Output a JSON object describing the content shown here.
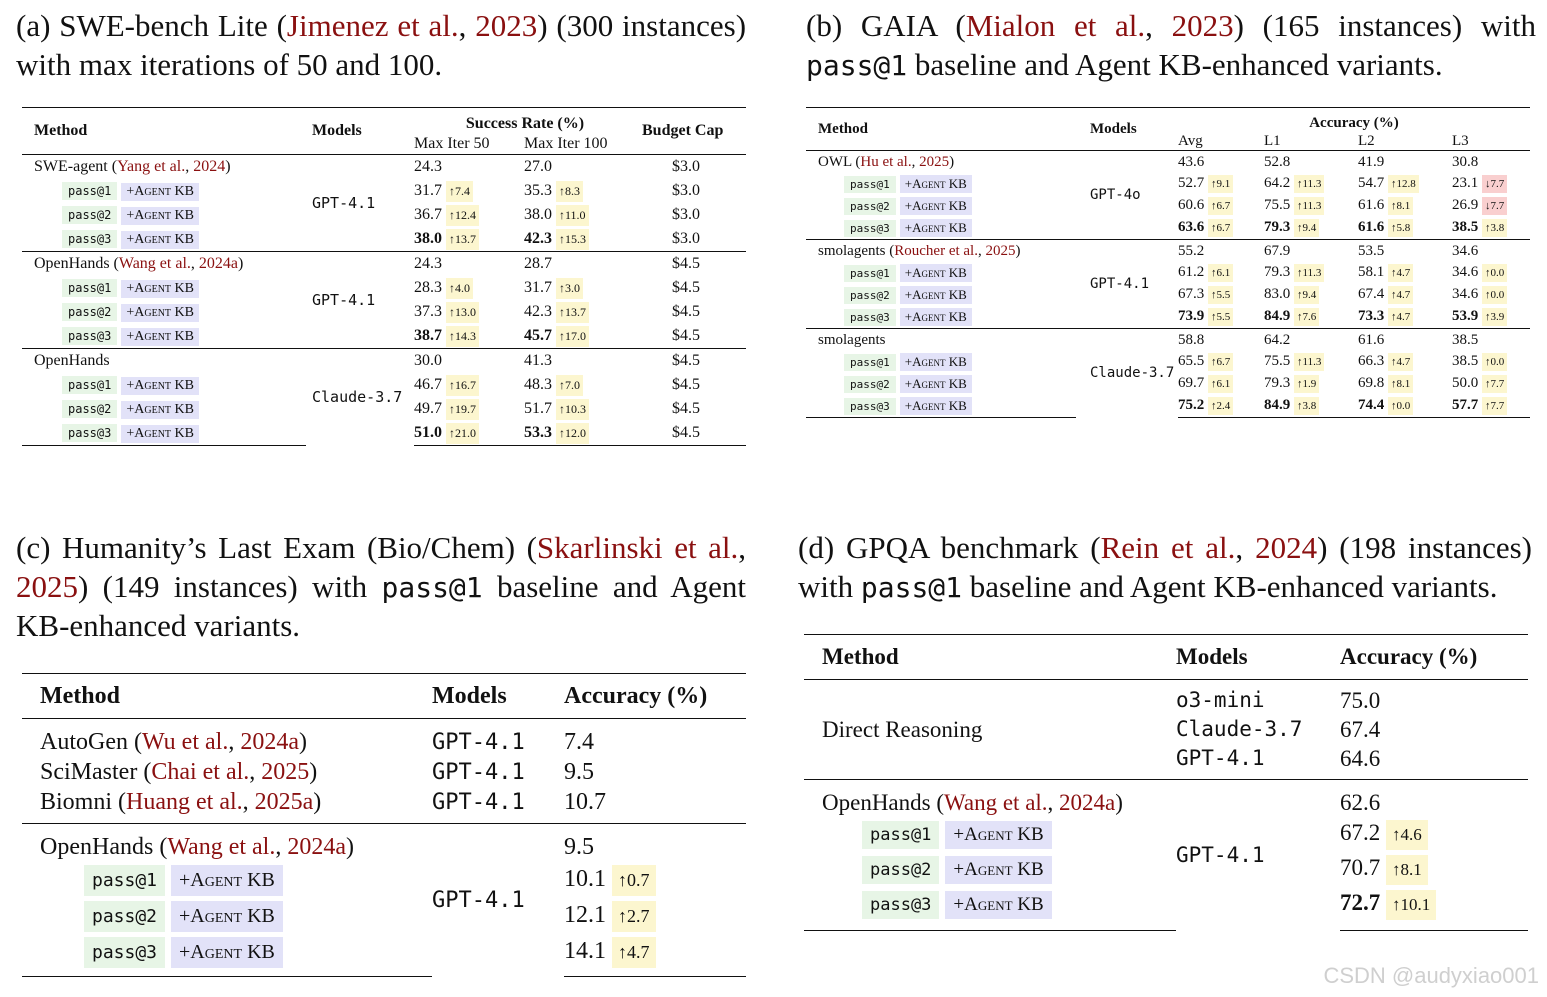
{
  "panel_a": {
    "caption": {
      "label": "(a) SWE-bench Lite (",
      "cite_author": "Jimenez et al.",
      "cite_sep": ", ",
      "cite_year": "2023",
      "rest": ") (300 instances) with max iterations of 50 and 100."
    },
    "header": {
      "method": "Method",
      "models": "Models",
      "group": "Success Rate (%)",
      "col1": "Max Iter 50",
      "col2": "Max Iter 100",
      "budget": "Budget Cap"
    },
    "groups": [
      {
        "method": "SWE-agent",
        "cite_author": "Yang et al.",
        "cite_year": "2024",
        "model": "GPT-4.1",
        "base": {
          "v1": "24.3",
          "v2": "27.0",
          "cap": "$3.0"
        },
        "rows": [
          {
            "pass": "pass@1",
            "kb": "+Agent KB",
            "v1": "31.7",
            "d1": "↑7.4",
            "v2": "35.3",
            "d2": "↑8.3",
            "cap": "$3.0"
          },
          {
            "pass": "pass@2",
            "kb": "+Agent KB",
            "v1": "36.7",
            "d1": "↑12.4",
            "v2": "38.0",
            "d2": "↑11.0",
            "cap": "$3.0"
          },
          {
            "pass": "pass@3",
            "kb": "+Agent KB",
            "v1": "38.0",
            "d1": "↑13.7",
            "v2": "42.3",
            "d2": "↑15.3",
            "cap": "$3.0"
          }
        ]
      },
      {
        "method": "OpenHands",
        "cite_author": "Wang et al.",
        "cite_year": "2024a",
        "model": "GPT-4.1",
        "base": {
          "v1": "24.3",
          "v2": "28.7",
          "cap": "$4.5"
        },
        "rows": [
          {
            "pass": "pass@1",
            "kb": "+Agent KB",
            "v1": "28.3",
            "d1": "↑4.0",
            "v2": "31.7",
            "d2": "↑3.0",
            "cap": "$4.5"
          },
          {
            "pass": "pass@2",
            "kb": "+Agent KB",
            "v1": "37.3",
            "d1": "↑13.0",
            "v2": "42.3",
            "d2": "↑13.7",
            "cap": "$4.5"
          },
          {
            "pass": "pass@3",
            "kb": "+Agent KB",
            "v1": "38.7",
            "d1": "↑14.3",
            "v2": "45.7",
            "d2": "↑17.0",
            "cap": "$4.5"
          }
        ]
      },
      {
        "method": "OpenHands",
        "cite_author": "",
        "cite_year": "",
        "model": "Claude-3.7",
        "base": {
          "v1": "30.0",
          "v2": "41.3",
          "cap": "$4.5"
        },
        "rows": [
          {
            "pass": "pass@1",
            "kb": "+Agent KB",
            "v1": "46.7",
            "d1": "↑16.7",
            "v2": "48.3",
            "d2": "↑7.0",
            "cap": "$4.5"
          },
          {
            "pass": "pass@2",
            "kb": "+Agent KB",
            "v1": "49.7",
            "d1": "↑19.7",
            "v2": "51.7",
            "d2": "↑10.3",
            "cap": "$4.5"
          },
          {
            "pass": "pass@3",
            "kb": "+Agent KB",
            "v1": "51.0",
            "d1": "↑21.0",
            "v2": "53.3",
            "d2": "↑12.0",
            "cap": "$4.5"
          }
        ]
      }
    ]
  },
  "panel_b": {
    "caption": {
      "label": "(b) GAIA (",
      "cite_author": "Mialon et al.",
      "cite_sep": ", ",
      "cite_year": "2023",
      "rest1": ") (165 instances) with ",
      "code": "pass@1",
      "rest2": " baseline and Agent KB-enhanced variants."
    },
    "header": {
      "method": "Method",
      "models": "Models",
      "group": "Accuracy (%)",
      "avg": "Avg",
      "l1": "L1",
      "l2": "L2",
      "l3": "L3"
    },
    "groups": [
      {
        "method": "OWL",
        "cite_author": "Hu et al.",
        "cite_year": "2025",
        "model": "GPT-4o",
        "base": [
          "43.6",
          "52.8",
          "41.9",
          "30.8"
        ],
        "rows": [
          {
            "pass": "pass@1",
            "kb": "+Agent KB",
            "vals": [
              "52.7",
              "64.2",
              "54.7",
              "23.1"
            ],
            "deltas": [
              "↑9.1",
              "↑11.3",
              "↑12.8",
              "↓7.7"
            ]
          },
          {
            "pass": "pass@2",
            "kb": "+Agent KB",
            "vals": [
              "60.6",
              "75.5",
              "61.6",
              "26.9"
            ],
            "deltas": [
              "↑6.7",
              "↑11.3",
              "↑8.1",
              "↓7.7"
            ]
          },
          {
            "pass": "pass@3",
            "kb": "+Agent KB",
            "vals": [
              "63.6",
              "79.3",
              "61.6",
              "38.5"
            ],
            "deltas": [
              "↑6.7",
              "↑9.4",
              "↑5.8",
              "↑3.8"
            ]
          }
        ]
      },
      {
        "method": "smolagents",
        "cite_author": "Roucher et al.",
        "cite_year": "2025",
        "model": "GPT-4.1",
        "base": [
          "55.2",
          "67.9",
          "53.5",
          "34.6"
        ],
        "rows": [
          {
            "pass": "pass@1",
            "kb": "+Agent KB",
            "vals": [
              "61.2",
              "79.3",
              "58.1",
              "34.6"
            ],
            "deltas": [
              "↑6.1",
              "↑11.3",
              "↑4.7",
              "↑0.0"
            ]
          },
          {
            "pass": "pass@2",
            "kb": "+Agent KB",
            "vals": [
              "67.3",
              "83.0",
              "67.4",
              "34.6"
            ],
            "deltas": [
              "↑5.5",
              "↑9.4",
              "↑4.7",
              "↑0.0"
            ]
          },
          {
            "pass": "pass@3",
            "kb": "+Agent KB",
            "vals": [
              "73.9",
              "84.9",
              "73.3",
              "53.9"
            ],
            "deltas": [
              "↑5.5",
              "↑7.6",
              "↑4.7",
              "↑3.9"
            ]
          }
        ]
      },
      {
        "method": "smolagents",
        "cite_author": "",
        "cite_year": "",
        "model": "Claude-3.7",
        "base": [
          "58.8",
          "64.2",
          "61.6",
          "38.5"
        ],
        "rows": [
          {
            "pass": "pass@1",
            "kb": "+Agent KB",
            "vals": [
              "65.5",
              "75.5",
              "66.3",
              "38.5"
            ],
            "deltas": [
              "↑6.7",
              "↑11.3",
              "↑4.7",
              "↑0.0"
            ]
          },
          {
            "pass": "pass@2",
            "kb": "+Agent KB",
            "vals": [
              "69.7",
              "79.3",
              "69.8",
              "50.0"
            ],
            "deltas": [
              "↑6.1",
              "↑1.9",
              "↑8.1",
              "↑7.7"
            ]
          },
          {
            "pass": "pass@3",
            "kb": "+Agent KB",
            "vals": [
              "75.2",
              "84.9",
              "74.4",
              "57.7"
            ],
            "deltas": [
              "↑2.4",
              "↑3.8",
              "↑0.0",
              "↑7.7"
            ]
          }
        ]
      }
    ]
  },
  "panel_c": {
    "caption": {
      "label": "(c) Humanity’s Last Exam (Bio/Chem) (",
      "cite_author": "Skarlinski et al.",
      "cite_sep": ", ",
      "cite_year": "2025",
      "rest1": ") (149 instances) with ",
      "code": "pass@1",
      "rest2": " baseline and Agent KB-enhanced variants."
    },
    "header": {
      "method": "Method",
      "models": "Models",
      "accuracy": "Accuracy (%)"
    },
    "simple": [
      {
        "method": "AutoGen",
        "cite_author": "Wu et al.",
        "cite_year": "2024a",
        "model": "GPT-4.1",
        "acc": "7.4"
      },
      {
        "method": "SciMaster",
        "cite_author": "Chai et al.",
        "cite_year": "2025",
        "model": "GPT-4.1",
        "acc": "9.5"
      },
      {
        "method": "Biomni",
        "cite_author": "Huang et al.",
        "cite_year": "2025a",
        "model": "GPT-4.1",
        "acc": "10.7"
      }
    ],
    "group": {
      "method": "OpenHands",
      "cite_author": "Wang et al.",
      "cite_year": "2024a",
      "model": "GPT-4.1",
      "base": "9.5",
      "rows": [
        {
          "pass": "pass@1",
          "kb": "+Agent KB",
          "acc": "10.1",
          "delta": "↑0.7"
        },
        {
          "pass": "pass@2",
          "kb": "+Agent KB",
          "acc": "12.1",
          "delta": "↑2.7"
        },
        {
          "pass": "pass@3",
          "kb": "+Agent KB",
          "acc": "14.1",
          "delta": "↑4.7"
        }
      ]
    }
  },
  "panel_d": {
    "caption": {
      "label": "(d) GPQA benchmark (",
      "cite_author": "Rein et al.",
      "cite_sep": ", ",
      "cite_year": "2024",
      "rest1": ") (198 instances) with ",
      "code": "pass@1",
      "rest2": " baseline and Agent KB-enhanced variants."
    },
    "header": {
      "method": "Method",
      "models": "Models",
      "accuracy": "Accuracy (%)"
    },
    "direct": {
      "method": "Direct Reasoning",
      "rows": [
        {
          "model": "o3-mini",
          "acc": "75.0"
        },
        {
          "model": "Claude-3.7",
          "acc": "67.4"
        },
        {
          "model": "GPT-4.1",
          "acc": "64.6"
        }
      ]
    },
    "group": {
      "method": "OpenHands",
      "cite_author": "Wang et al.",
      "cite_year": "2024a",
      "model": "GPT-4.1",
      "base": "62.6",
      "rows": [
        {
          "pass": "pass@1",
          "kb": "+Agent KB",
          "acc": "67.2",
          "delta": "↑4.6"
        },
        {
          "pass": "pass@2",
          "kb": "+Agent KB",
          "acc": "70.7",
          "delta": "↑8.1"
        },
        {
          "pass": "pass@3",
          "kb": "+Agent KB",
          "acc": "72.7",
          "delta": "↑10.1"
        }
      ]
    }
  },
  "watermark": "CSDN @audyxiao001",
  "colors": {
    "citation": "#8a1010",
    "pass_bg": "#e7f5e6",
    "kb_bg": "#e2e2f8",
    "delta_up_bg": "#fcf6cf",
    "delta_down_bg": "#f9cfcf"
  }
}
